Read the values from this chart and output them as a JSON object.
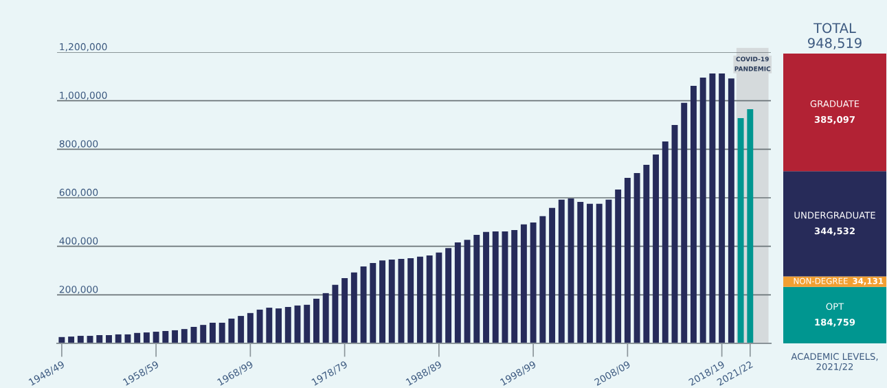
{
  "chart_data": [
    {
      "type": "bar",
      "categories": [
        "1948/49",
        null,
        null,
        null,
        null,
        null,
        null,
        null,
        null,
        null,
        "1958/59",
        null,
        null,
        null,
        null,
        null,
        null,
        null,
        null,
        null,
        "1968/99",
        null,
        null,
        null,
        null,
        null,
        null,
        null,
        null,
        null,
        "1978/79",
        null,
        null,
        null,
        null,
        null,
        null,
        null,
        null,
        null,
        "1988/89",
        null,
        null,
        null,
        null,
        null,
        null,
        null,
        null,
        null,
        "1998/99",
        null,
        null,
        null,
        null,
        null,
        null,
        null,
        null,
        null,
        "2008/09",
        null,
        null,
        null,
        null,
        null,
        null,
        null,
        null,
        null,
        "2018/19",
        null,
        null,
        "2021/22"
      ],
      "series": [
        {
          "color": "#262b5a",
          "values": [
            26000,
            28000,
            31000,
            31000,
            34000,
            34000,
            37000,
            37000,
            43000,
            45000,
            48000,
            51000,
            54000,
            59000,
            68000,
            76000,
            85000,
            85000,
            102000,
            113000,
            125000,
            139000,
            147000,
            144000,
            150000,
            156000,
            159000,
            184000,
            207000,
            241000,
            269000,
            292000,
            317000,
            331000,
            342000,
            345000,
            348000,
            351000,
            357000,
            362000,
            374000,
            393000,
            416000,
            427000,
            447000,
            459000,
            461000,
            461000,
            467000,
            490000,
            498000,
            524000,
            558000,
            592000,
            597000,
            583000,
            575000,
            575000,
            592000,
            634000,
            682000,
            702000,
            736000,
            778000,
            832000,
            900000,
            991000,
            1061000,
            1095000,
            1112000,
            1112000,
            1092000,
            null,
            null
          ]
        },
        {
          "color": "#009690",
          "values": [
            null,
            null,
            null,
            null,
            null,
            null,
            null,
            null,
            null,
            null,
            null,
            null,
            null,
            null,
            null,
            null,
            null,
            null,
            null,
            null,
            null,
            null,
            null,
            null,
            null,
            null,
            null,
            null,
            null,
            null,
            null,
            null,
            null,
            null,
            null,
            null,
            null,
            null,
            null,
            null,
            null,
            null,
            null,
            null,
            null,
            null,
            null,
            null,
            null,
            null,
            null,
            null,
            null,
            null,
            null,
            null,
            null,
            null,
            null,
            null,
            null,
            null,
            null,
            null,
            null,
            null,
            null,
            null,
            null,
            null,
            null,
            null,
            928000,
            965000
          ]
        }
      ],
      "ylim": [
        0,
        1200000
      ],
      "yticks": [
        {
          "value": 200000,
          "label": "200,000"
        },
        {
          "value": 400000,
          "label": "400,000"
        },
        {
          "value": 600000,
          "label": "600,000"
        },
        {
          "value": 800000,
          "label": "800,000"
        },
        {
          "value": 1000000,
          "label": "1,000,000"
        },
        {
          "value": 1200000,
          "label": "1,200,000"
        }
      ],
      "grid": "y",
      "annotations": [
        "COVID-19\nPANDEMIC"
      ]
    },
    {
      "type": "bar",
      "stacked": true,
      "title": "TOTAL\n948,519",
      "xlabel": "ACADEMIC LEVELS,\n2021/22",
      "categories": [
        null
      ],
      "series": [
        {
          "name": "OPT",
          "color": "#009690",
          "values": [
            184759
          ],
          "value_labels": [
            "184,759"
          ]
        },
        {
          "name": "NON-DEGREE",
          "color": "#f29f32",
          "values": [
            34131
          ],
          "value_labels": [
            "34,131"
          ]
        },
        {
          "name": "UNDERGRADUATE",
          "color": "#272b59",
          "values": [
            344532
          ],
          "value_labels": [
            "344,532"
          ]
        },
        {
          "name": "GRADUATE",
          "color": "#b22234",
          "values": [
            385097
          ],
          "value_labels": [
            "385,097"
          ]
        }
      ],
      "ylim": [
        0,
        948519
      ]
    }
  ]
}
